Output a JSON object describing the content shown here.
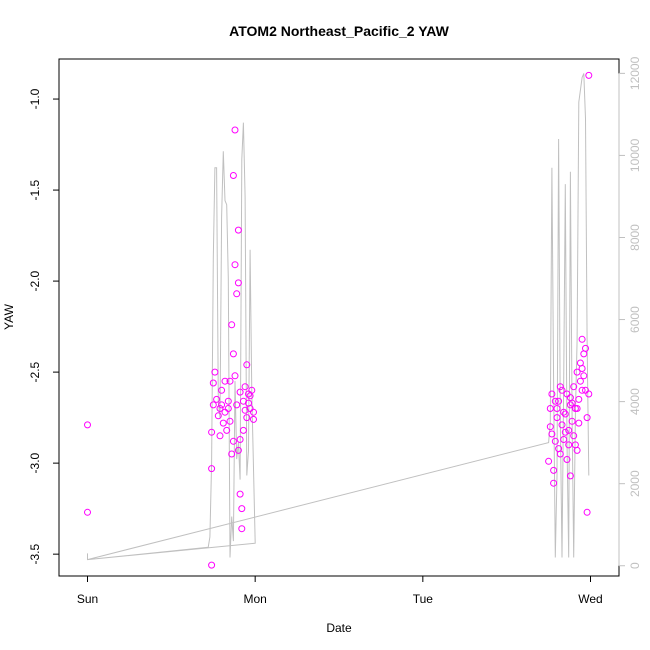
{
  "chart_data": {
    "type": "scatter",
    "title": "ATOM2 Northeast_Pacific_2 YAW",
    "xlabel": "Date",
    "ylabel": "YAW",
    "x_unit": "days since Sun 00:00",
    "xlim": [
      -0.17,
      3.17
    ],
    "ylim": [
      -3.62,
      -0.78
    ],
    "y2lim": [
      -250,
      12350
    ],
    "x_ticks": [
      {
        "value": 0,
        "label": "Sun"
      },
      {
        "value": 1,
        "label": "Mon"
      },
      {
        "value": 2,
        "label": "Tue"
      },
      {
        "value": 3,
        "label": "Wed"
      }
    ],
    "y_ticks": [
      {
        "value": -1.0,
        "label": "-1.0"
      },
      {
        "value": -1.5,
        "label": "-1.5"
      },
      {
        "value": -2.0,
        "label": "-2.0"
      },
      {
        "value": -2.5,
        "label": "-2.5"
      },
      {
        "value": -3.0,
        "label": "-3.0"
      },
      {
        "value": -3.5,
        "label": "-3.5"
      }
    ],
    "y2_ticks": [
      {
        "value": 0,
        "label": "0"
      },
      {
        "value": 2000,
        "label": "2000"
      },
      {
        "value": 4000,
        "label": "4000"
      },
      {
        "value": 6000,
        "label": "6000"
      },
      {
        "value": 8000,
        "label": "8000"
      },
      {
        "value": 10000,
        "label": "10000"
      },
      {
        "value": 12000,
        "label": "12000"
      }
    ],
    "series": [
      {
        "kind": "points",
        "color": "#ff00ff",
        "points": [
          [
            0.0,
            -2.79
          ],
          [
            0.0,
            -3.27
          ],
          [
            0.74,
            -3.56
          ],
          [
            0.74,
            -3.03
          ],
          [
            0.74,
            -2.83
          ],
          [
            0.75,
            -2.68
          ],
          [
            0.75,
            -2.56
          ],
          [
            0.76,
            -2.5
          ],
          [
            0.77,
            -2.65
          ],
          [
            0.78,
            -2.74
          ],
          [
            0.79,
            -2.85
          ],
          [
            0.79,
            -2.7
          ],
          [
            0.8,
            -2.6
          ],
          [
            0.81,
            -2.78
          ],
          [
            0.82,
            -2.72
          ],
          [
            0.83,
            -2.82
          ],
          [
            0.84,
            -2.66
          ],
          [
            0.85,
            -2.55
          ],
          [
            0.86,
            -2.95
          ],
          [
            0.86,
            -2.24
          ],
          [
            0.87,
            -2.4
          ],
          [
            0.87,
            -1.42
          ],
          [
            0.88,
            -1.17
          ],
          [
            0.88,
            -1.91
          ],
          [
            0.89,
            -2.07
          ],
          [
            0.89,
            -2.68
          ],
          [
            0.9,
            -2.01
          ],
          [
            0.9,
            -1.72
          ],
          [
            0.91,
            -2.87
          ],
          [
            0.91,
            -3.17
          ],
          [
            0.92,
            -3.36
          ],
          [
            0.92,
            -3.25
          ],
          [
            0.93,
            -2.66
          ],
          [
            0.94,
            -2.58
          ],
          [
            0.95,
            -2.46
          ],
          [
            0.95,
            -2.75
          ],
          [
            0.96,
            -2.62
          ],
          [
            0.97,
            -2.7
          ],
          [
            0.98,
            -2.6
          ],
          [
            0.99,
            -2.76
          ],
          [
            0.99,
            -2.72
          ],
          [
            0.84,
            -2.7
          ],
          [
            0.87,
            -2.88
          ],
          [
            0.9,
            -2.93
          ],
          [
            0.93,
            -2.82
          ],
          [
            0.96,
            -2.67
          ],
          [
            0.8,
            -2.68
          ],
          [
            0.82,
            -2.55
          ],
          [
            0.85,
            -2.77
          ],
          [
            0.88,
            -2.52
          ],
          [
            0.91,
            -2.61
          ],
          [
            0.94,
            -2.71
          ],
          [
            0.97,
            -2.63
          ],
          [
            2.75,
            -2.99
          ],
          [
            2.76,
            -2.8
          ],
          [
            2.76,
            -2.7
          ],
          [
            2.77,
            -2.62
          ],
          [
            2.78,
            -3.04
          ],
          [
            2.78,
            -3.11
          ],
          [
            2.79,
            -2.88
          ],
          [
            2.8,
            -2.75
          ],
          [
            2.81,
            -2.66
          ],
          [
            2.82,
            -2.95
          ],
          [
            2.82,
            -2.58
          ],
          [
            2.83,
            -2.79
          ],
          [
            2.84,
            -2.72
          ],
          [
            2.85,
            -2.83
          ],
          [
            2.86,
            -2.62
          ],
          [
            2.86,
            -2.98
          ],
          [
            2.87,
            -2.9
          ],
          [
            2.88,
            -2.68
          ],
          [
            2.88,
            -3.07
          ],
          [
            2.89,
            -2.77
          ],
          [
            2.9,
            -2.58
          ],
          [
            2.9,
            -2.85
          ],
          [
            2.91,
            -2.7
          ],
          [
            2.92,
            -2.5
          ],
          [
            2.92,
            -2.93
          ],
          [
            2.93,
            -2.65
          ],
          [
            2.94,
            -2.45
          ],
          [
            2.95,
            -2.32
          ],
          [
            2.95,
            -2.6
          ],
          [
            2.96,
            -2.4
          ],
          [
            2.96,
            -2.52
          ],
          [
            2.97,
            -2.37
          ],
          [
            2.98,
            -2.75
          ],
          [
            2.98,
            -3.27
          ],
          [
            2.99,
            -2.62
          ],
          [
            2.99,
            -0.87
          ],
          [
            2.77,
            -2.84
          ],
          [
            2.79,
            -2.66
          ],
          [
            2.81,
            -2.92
          ],
          [
            2.83,
            -2.6
          ],
          [
            2.85,
            -2.73
          ],
          [
            2.87,
            -2.82
          ],
          [
            2.89,
            -2.67
          ],
          [
            2.91,
            -2.9
          ],
          [
            2.93,
            -2.78
          ],
          [
            2.94,
            -2.55
          ],
          [
            2.97,
            -2.6
          ],
          [
            2.8,
            -2.7
          ],
          [
            2.84,
            -2.87
          ],
          [
            2.88,
            -2.64
          ],
          [
            2.92,
            -2.7
          ],
          [
            2.95,
            -2.48
          ]
        ]
      },
      {
        "kind": "line",
        "color": "#c0c0c0",
        "axis": "right",
        "points": [
          [
            0.0,
            300
          ],
          [
            0.0,
            150
          ],
          [
            0.72,
            450
          ],
          [
            0.73,
            700
          ],
          [
            0.74,
            2500
          ],
          [
            0.75,
            7500
          ],
          [
            0.76,
            9700
          ],
          [
            0.77,
            9700
          ],
          [
            0.78,
            4000
          ],
          [
            0.79,
            3600
          ],
          [
            0.8,
            8500
          ],
          [
            0.81,
            10100
          ],
          [
            0.82,
            8900
          ],
          [
            0.83,
            8800
          ],
          [
            0.84,
            7000
          ],
          [
            0.85,
            200
          ],
          [
            0.86,
            1200
          ],
          [
            0.87,
            600
          ],
          [
            0.88,
            4500
          ],
          [
            0.89,
            2600
          ],
          [
            0.9,
            3000
          ],
          [
            0.91,
            2100
          ],
          [
            0.92,
            9900
          ],
          [
            0.93,
            10800
          ],
          [
            0.94,
            9000
          ],
          [
            0.95,
            2200
          ],
          [
            0.96,
            2800
          ],
          [
            0.97,
            7700
          ],
          [
            0.98,
            4200
          ],
          [
            1.0,
            550
          ],
          [
            0.0,
            150
          ],
          [
            2.75,
            3000
          ],
          [
            2.76,
            3500
          ],
          [
            2.77,
            9700
          ],
          [
            2.78,
            4500
          ],
          [
            2.79,
            200
          ],
          [
            2.8,
            2200
          ],
          [
            2.81,
            10400
          ],
          [
            2.82,
            3600
          ],
          [
            2.83,
            200
          ],
          [
            2.84,
            4500
          ],
          [
            2.85,
            9300
          ],
          [
            2.86,
            3000
          ],
          [
            2.87,
            200
          ],
          [
            2.88,
            9600
          ],
          [
            2.89,
            3600
          ],
          [
            2.9,
            200
          ],
          [
            2.91,
            3700
          ],
          [
            2.92,
            5500
          ],
          [
            2.93,
            11300
          ],
          [
            2.95,
            11900
          ],
          [
            2.96,
            12000
          ],
          [
            2.97,
            10900
          ],
          [
            2.98,
            5500
          ],
          [
            2.99,
            2200
          ]
        ]
      }
    ]
  }
}
